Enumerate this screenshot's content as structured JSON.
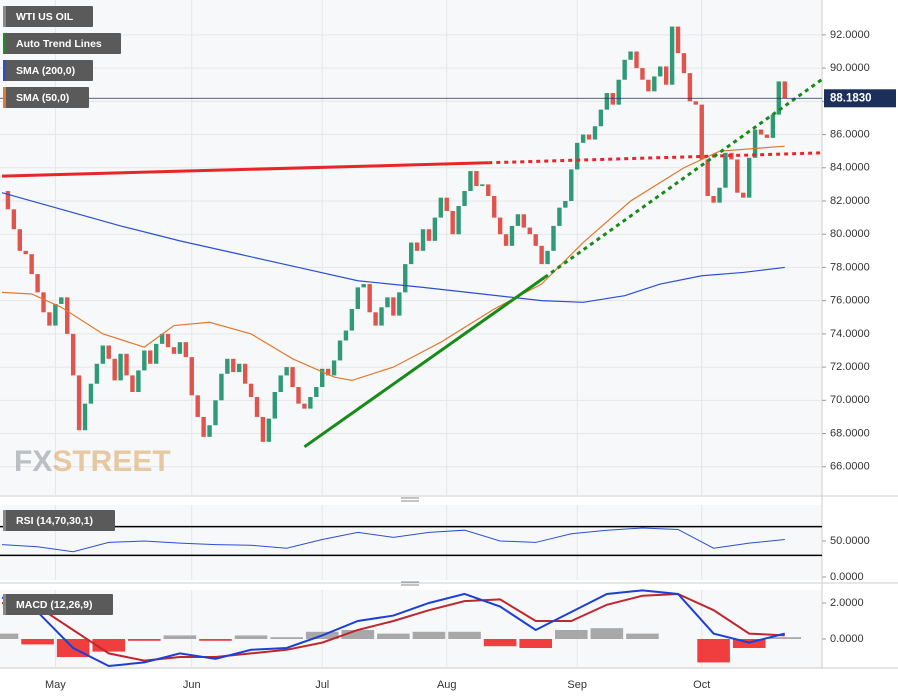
{
  "chart_data": [
    {
      "type": "candlestick",
      "title": "WTI US OIL",
      "values": [
        82.6,
        81.5,
        80.3,
        79.0,
        78.8,
        77.6,
        76.5,
        75.3,
        74.5,
        75.8,
        76.2,
        74.0,
        71.5,
        68.2,
        69.8,
        71.0,
        72.2,
        73.3,
        72.5,
        71.2,
        72.8,
        71.5,
        70.5,
        71.8,
        73.0,
        72.2,
        73.4,
        74.0,
        73.2,
        72.8,
        73.5,
        72.6,
        70.3,
        69.0,
        67.8,
        68.5,
        70.0,
        71.6,
        72.5,
        71.7,
        72.2,
        71.0,
        70.2,
        69.0,
        67.5,
        68.9,
        70.5,
        71.5,
        72.0,
        70.8,
        69.8,
        69.5,
        70.2,
        70.8,
        71.9,
        71.5,
        72.4,
        73.6,
        74.2,
        75.5,
        76.8,
        77.0,
        75.3,
        74.5,
        75.6,
        76.2,
        75.1,
        76.5,
        78.2,
        79.5,
        79.0,
        80.3,
        79.6,
        81.0,
        82.2,
        81.4,
        80.0,
        81.7,
        82.6,
        83.8,
        82.9,
        83.0,
        82.3,
        81.0,
        80.0,
        79.3,
        80.5,
        81.2,
        80.4,
        80.0,
        79.3,
        78.2,
        79.0,
        80.5,
        81.6,
        82.0,
        83.9,
        85.5,
        86.0,
        85.7,
        86.5,
        87.5,
        88.5,
        87.8,
        89.3,
        90.5,
        91.0,
        90.0,
        89.3,
        88.6,
        89.5,
        90.1,
        89.0,
        92.5,
        90.9,
        89.7,
        88.0,
        87.8,
        84.5,
        82.3,
        81.9,
        82.8,
        84.9,
        84.5,
        82.5,
        82.2,
        84.6,
        86.3,
        86.0,
        85.8,
        87.2,
        89.2,
        88.183
      ],
      "up_color": "#2f9a75",
      "down_color": "#e0544c",
      "ylim": [
        64.3,
        94.1
      ],
      "yticks": [
        {
          "value": 66,
          "label": "66.0000"
        },
        {
          "value": 68,
          "label": "68.0000"
        },
        {
          "value": 70,
          "label": "70.0000"
        },
        {
          "value": 72,
          "label": "72.0000"
        },
        {
          "value": 74,
          "label": "74.0000"
        },
        {
          "value": 76,
          "label": "76.0000"
        },
        {
          "value": 78,
          "label": "78.0000"
        },
        {
          "value": 80,
          "label": "80.0000"
        },
        {
          "value": 82,
          "label": "82.0000"
        },
        {
          "value": 84,
          "label": "84.0000"
        },
        {
          "value": 86,
          "label": "86.0000"
        },
        {
          "value": 88,
          "label": "88.0000"
        },
        {
          "value": 90,
          "label": "90.0000"
        },
        {
          "value": 92,
          "label": "92.0000"
        }
      ],
      "grid": true,
      "series": [
        {
          "name": "SMA (200,0)",
          "color": "#2a4fd6",
          "x": [
            0,
            10,
            20,
            30,
            40,
            50,
            60,
            71,
            81,
            91,
            98,
            105,
            111,
            118,
            125,
            132
          ],
          "values": [
            82.5,
            81.5,
            80.5,
            79.6,
            78.8,
            78.0,
            77.2,
            76.8,
            76.4,
            76.0,
            75.9,
            76.3,
            77.0,
            77.5,
            77.7,
            78.0
          ]
        },
        {
          "name": "SMA (50,0)",
          "color": "#e07a2e",
          "x": [
            0,
            5,
            10,
            17,
            24,
            29,
            35,
            42,
            49,
            56,
            59,
            66,
            74,
            83,
            91,
            98,
            106,
            115,
            121,
            132
          ],
          "values": [
            76.5,
            76.4,
            75.6,
            74.0,
            73.2,
            74.5,
            74.7,
            74.0,
            72.5,
            71.4,
            71.2,
            72.0,
            73.5,
            75.5,
            77.0,
            79.5,
            82.0,
            84.0,
            85.0,
            85.3
          ]
        }
      ],
      "trend_legend": {
        "name": "Auto Trend Lines",
        "color": "#1f8a1f"
      },
      "trend_lines": [
        {
          "color": "#e8262a",
          "x": [
            0,
            82,
            138.6
          ],
          "values": [
            83.5,
            84.3,
            84.9
          ]
        },
        {
          "color": "#178a17",
          "x": [
            51,
            91.5,
            138.6
          ],
          "values": [
            67.2,
            77.4,
            89.4
          ]
        }
      ],
      "last_price": {
        "value": 88.183,
        "label": "88.1830"
      },
      "watermark": [
        "FX",
        "STREET"
      ]
    },
    {
      "type": "line",
      "title": "RSI (14,70,30,1)",
      "color": "#2a4fd6",
      "x": [
        0,
        6,
        12,
        18,
        24,
        30,
        36,
        42,
        48,
        54,
        60,
        66,
        72,
        78,
        84,
        90,
        96,
        102,
        108,
        114,
        120,
        126,
        132
      ],
      "values": [
        45,
        42,
        35,
        48,
        50,
        47,
        45,
        44,
        40,
        52,
        62,
        55,
        62,
        65,
        50,
        48,
        60,
        65,
        68,
        66,
        40,
        47,
        52
      ],
      "levels": [
        70,
        30
      ],
      "ylim": [
        -4.2,
        100
      ],
      "yticks": [
        {
          "value": 0,
          "label": "0.0000"
        },
        {
          "value": 50,
          "label": "50.0000"
        }
      ]
    },
    {
      "type": "macd",
      "title": "MACD (12,26,9)",
      "x": [
        0,
        6,
        12,
        18,
        24,
        30,
        36,
        42,
        48,
        54,
        60,
        66,
        72,
        78,
        84,
        90,
        96,
        102,
        108,
        114,
        120,
        126,
        132
      ],
      "macd": {
        "color": "#1c3fd8",
        "values": [
          2.3,
          1.5,
          -0.5,
          -1.5,
          -1.3,
          -0.8,
          -1.1,
          -0.6,
          -0.5,
          0.2,
          1.0,
          1.3,
          2.0,
          2.5,
          1.8,
          0.5,
          1.5,
          2.5,
          2.7,
          2.5,
          0.3,
          -0.2,
          0.3
        ]
      },
      "signal": {
        "color": "#c0262d",
        "values": [
          2.0,
          1.8,
          0.5,
          -0.8,
          -1.2,
          -1.0,
          -1.0,
          -0.8,
          -0.6,
          -0.2,
          0.5,
          1.0,
          1.6,
          2.1,
          2.2,
          1.0,
          1.0,
          1.9,
          2.4,
          2.5,
          1.6,
          0.3,
          0.2
        ]
      },
      "histogram": {
        "up_color": "#9a9a9a",
        "down_color": "#ee1c1c",
        "values": [
          0.3,
          -0.3,
          -1.0,
          -0.7,
          -0.1,
          0.2,
          -0.1,
          0.2,
          0.1,
          0.4,
          0.5,
          0.3,
          0.4,
          0.4,
          -0.4,
          -0.5,
          0.5,
          0.6,
          0.3,
          0,
          -1.3,
          -0.5,
          0.1
        ]
      },
      "ylim": [
        -1.61,
        2.72
      ],
      "yticks": [
        {
          "value": 0,
          "label": "0.0000"
        },
        {
          "value": 2,
          "label": "2.0000"
        }
      ],
      "xticks": [
        {
          "value": 9,
          "label": "May"
        },
        {
          "value": 32,
          "label": "Jun"
        },
        {
          "value": 54,
          "label": "Jul"
        },
        {
          "value": 75,
          "label": "Aug"
        },
        {
          "value": 97,
          "label": "Sep"
        },
        {
          "value": 118,
          "label": "Oct"
        }
      ]
    }
  ]
}
